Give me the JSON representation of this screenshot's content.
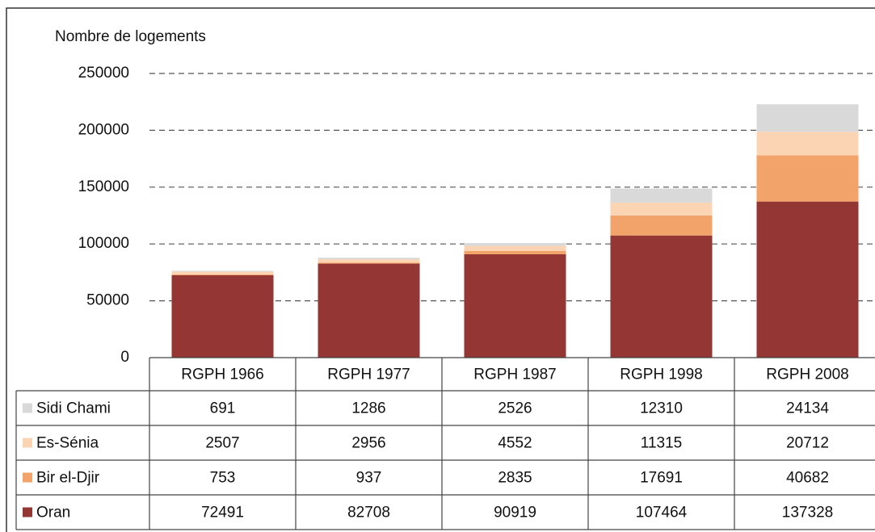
{
  "chart_data": {
    "type": "bar",
    "stacked": true,
    "y_axis_label": "Nombre de logements",
    "categories": [
      "RGPH 1966",
      "RGPH 1977",
      "RGPH 1987",
      "RGPH 1998",
      "RGPH 2008"
    ],
    "series": [
      {
        "name": "Oran",
        "color": "#943634",
        "values": [
          72491,
          82708,
          90919,
          107464,
          137328
        ]
      },
      {
        "name": "Bir el-Djir",
        "color": "#f2a36a",
        "values": [
          753,
          937,
          2835,
          17691,
          40682
        ]
      },
      {
        "name": "Es-Sénia",
        "color": "#fbd4b4",
        "values": [
          2507,
          2956,
          4552,
          11315,
          20712
        ]
      },
      {
        "name": "Sidi Chami",
        "color": "#d9d9d9",
        "values": [
          691,
          1286,
          2526,
          12310,
          24134
        ]
      }
    ],
    "ylim": [
      0,
      250000
    ],
    "yticks": [
      0,
      50000,
      100000,
      150000,
      200000,
      250000
    ],
    "grid": true
  }
}
